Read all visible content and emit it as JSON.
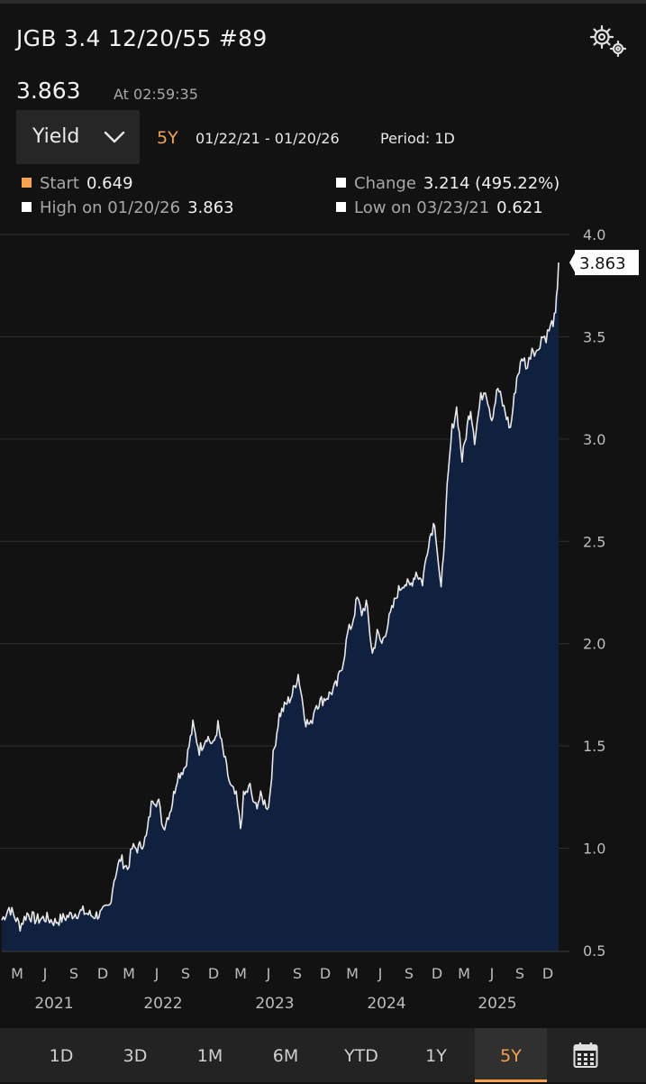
{
  "header": {
    "title": "JGB 3.4 12/20/55 #89",
    "settings_icon": "gear-icon",
    "last_price": "3.863",
    "timestamp": "At 02:59:35"
  },
  "controls": {
    "field_select": "Yield",
    "chevron_icon": "chevron-down-icon",
    "range_label": "5Y",
    "date_range": "01/22/21 - 01/20/26",
    "period": "Period: 1D"
  },
  "stats": {
    "start_label": "Start",
    "start_value": "0.649",
    "change_label": "Change",
    "change_value": "3.214 (495.22%)",
    "high_label": "High on 01/20/26",
    "high_value": "3.863",
    "low_label": "Low on 03/23/21",
    "low_value": "0.621"
  },
  "colors": {
    "accent": "#f5a24a",
    "area_fill": "#10203f",
    "line": "#e8e8e8",
    "background": "#121212"
  },
  "chart_data": {
    "type": "area",
    "title": "",
    "xlabel": "",
    "ylabel": "",
    "ylim": [
      0.5,
      4.0
    ],
    "y_ticks": [
      "0.5",
      "1.0",
      "1.5",
      "2.0",
      "2.5",
      "3.0",
      "3.5",
      "4.0"
    ],
    "grid": true,
    "last_value_label": "3.863",
    "x_month_ticks": [
      "M",
      "J",
      "S",
      "D",
      "M",
      "J",
      "S",
      "D",
      "M",
      "J",
      "S",
      "D",
      "M",
      "J",
      "S",
      "D",
      "M",
      "J",
      "S",
      "D"
    ],
    "x_year_labels": [
      "2021",
      "2022",
      "2023",
      "2024",
      "2025"
    ],
    "series": [
      {
        "x": [
          "2021-01-22",
          "2021-02-15",
          "2021-03-23",
          "2021-04-15",
          "2021-05-15",
          "2021-06-15",
          "2021-07-15",
          "2021-08-15",
          "2021-09-15",
          "2021-10-15",
          "2021-11-15",
          "2021-12-15",
          "2022-01-10",
          "2022-01-25",
          "2022-02-15",
          "2022-03-10",
          "2022-03-25",
          "2022-04-15",
          "2022-05-10",
          "2022-05-31",
          "2022-06-20",
          "2022-07-05",
          "2022-07-31",
          "2022-08-20",
          "2022-09-15",
          "2022-10-10",
          "2022-10-31",
          "2022-11-25",
          "2022-12-15",
          "2022-12-31",
          "2023-01-20",
          "2023-02-10",
          "2023-03-01",
          "2023-03-15",
          "2023-03-25",
          "2023-04-15",
          "2023-04-30",
          "2023-05-20",
          "2023-06-15",
          "2023-06-30",
          "2023-07-20",
          "2023-08-10",
          "2023-08-31",
          "2023-09-20",
          "2023-10-15",
          "2023-10-31",
          "2023-11-15",
          "2023-12-05",
          "2023-12-31",
          "2024-01-25",
          "2024-02-15",
          "2024-02-29",
          "2024-03-15",
          "2024-03-31",
          "2024-04-15",
          "2024-04-30",
          "2024-05-20",
          "2024-06-05",
          "2024-06-20",
          "2024-07-10",
          "2024-07-31",
          "2024-08-10",
          "2024-08-31",
          "2024-09-20",
          "2024-10-10",
          "2024-10-31",
          "2024-11-20",
          "2024-12-10",
          "2024-12-31",
          "2025-01-20",
          "2025-02-05",
          "2025-02-20",
          "2025-03-10",
          "2025-03-31",
          "2025-04-07",
          "2025-04-20",
          "2025-05-10",
          "2025-05-25",
          "2025-06-15",
          "2025-07-05",
          "2025-07-25",
          "2025-08-15",
          "2025-09-05",
          "2025-09-25",
          "2025-10-10",
          "2025-10-25",
          "2025-11-10",
          "2025-11-25",
          "2025-12-10",
          "2025-12-25",
          "2026-01-10",
          "2026-01-16",
          "2026-01-20"
        ],
        "y": [
          0.649,
          0.71,
          0.621,
          0.68,
          0.65,
          0.66,
          0.64,
          0.66,
          0.68,
          0.69,
          0.67,
          0.68,
          0.72,
          0.85,
          0.95,
          0.9,
          1.0,
          1.0,
          1.05,
          1.25,
          1.22,
          1.1,
          1.2,
          1.35,
          1.4,
          1.6,
          1.48,
          1.55,
          1.5,
          1.6,
          1.45,
          1.3,
          1.25,
          1.1,
          1.25,
          1.3,
          1.2,
          1.25,
          1.2,
          1.45,
          1.65,
          1.7,
          1.75,
          1.85,
          1.62,
          1.6,
          1.7,
          1.72,
          1.75,
          1.8,
          1.92,
          2.05,
          2.1,
          2.22,
          2.15,
          2.2,
          1.95,
          2.05,
          2.0,
          2.1,
          2.2,
          2.25,
          2.3,
          2.28,
          2.35,
          2.3,
          2.5,
          2.6,
          2.25,
          2.75,
          3.05,
          3.15,
          2.9,
          3.1,
          3.15,
          3.0,
          3.2,
          3.25,
          3.1,
          3.25,
          3.15,
          3.05,
          3.3,
          3.4,
          3.35,
          3.45,
          3.42,
          3.5,
          3.5,
          3.55,
          3.6,
          3.75,
          3.863
        ]
      }
    ]
  },
  "tabs": [
    {
      "label": "1D",
      "active": false
    },
    {
      "label": "3D",
      "active": false
    },
    {
      "label": "1M",
      "active": false
    },
    {
      "label": "6M",
      "active": false
    },
    {
      "label": "YTD",
      "active": false
    },
    {
      "label": "1Y",
      "active": false
    },
    {
      "label": "5Y",
      "active": true
    }
  ],
  "calendar_icon": "calendar-icon"
}
